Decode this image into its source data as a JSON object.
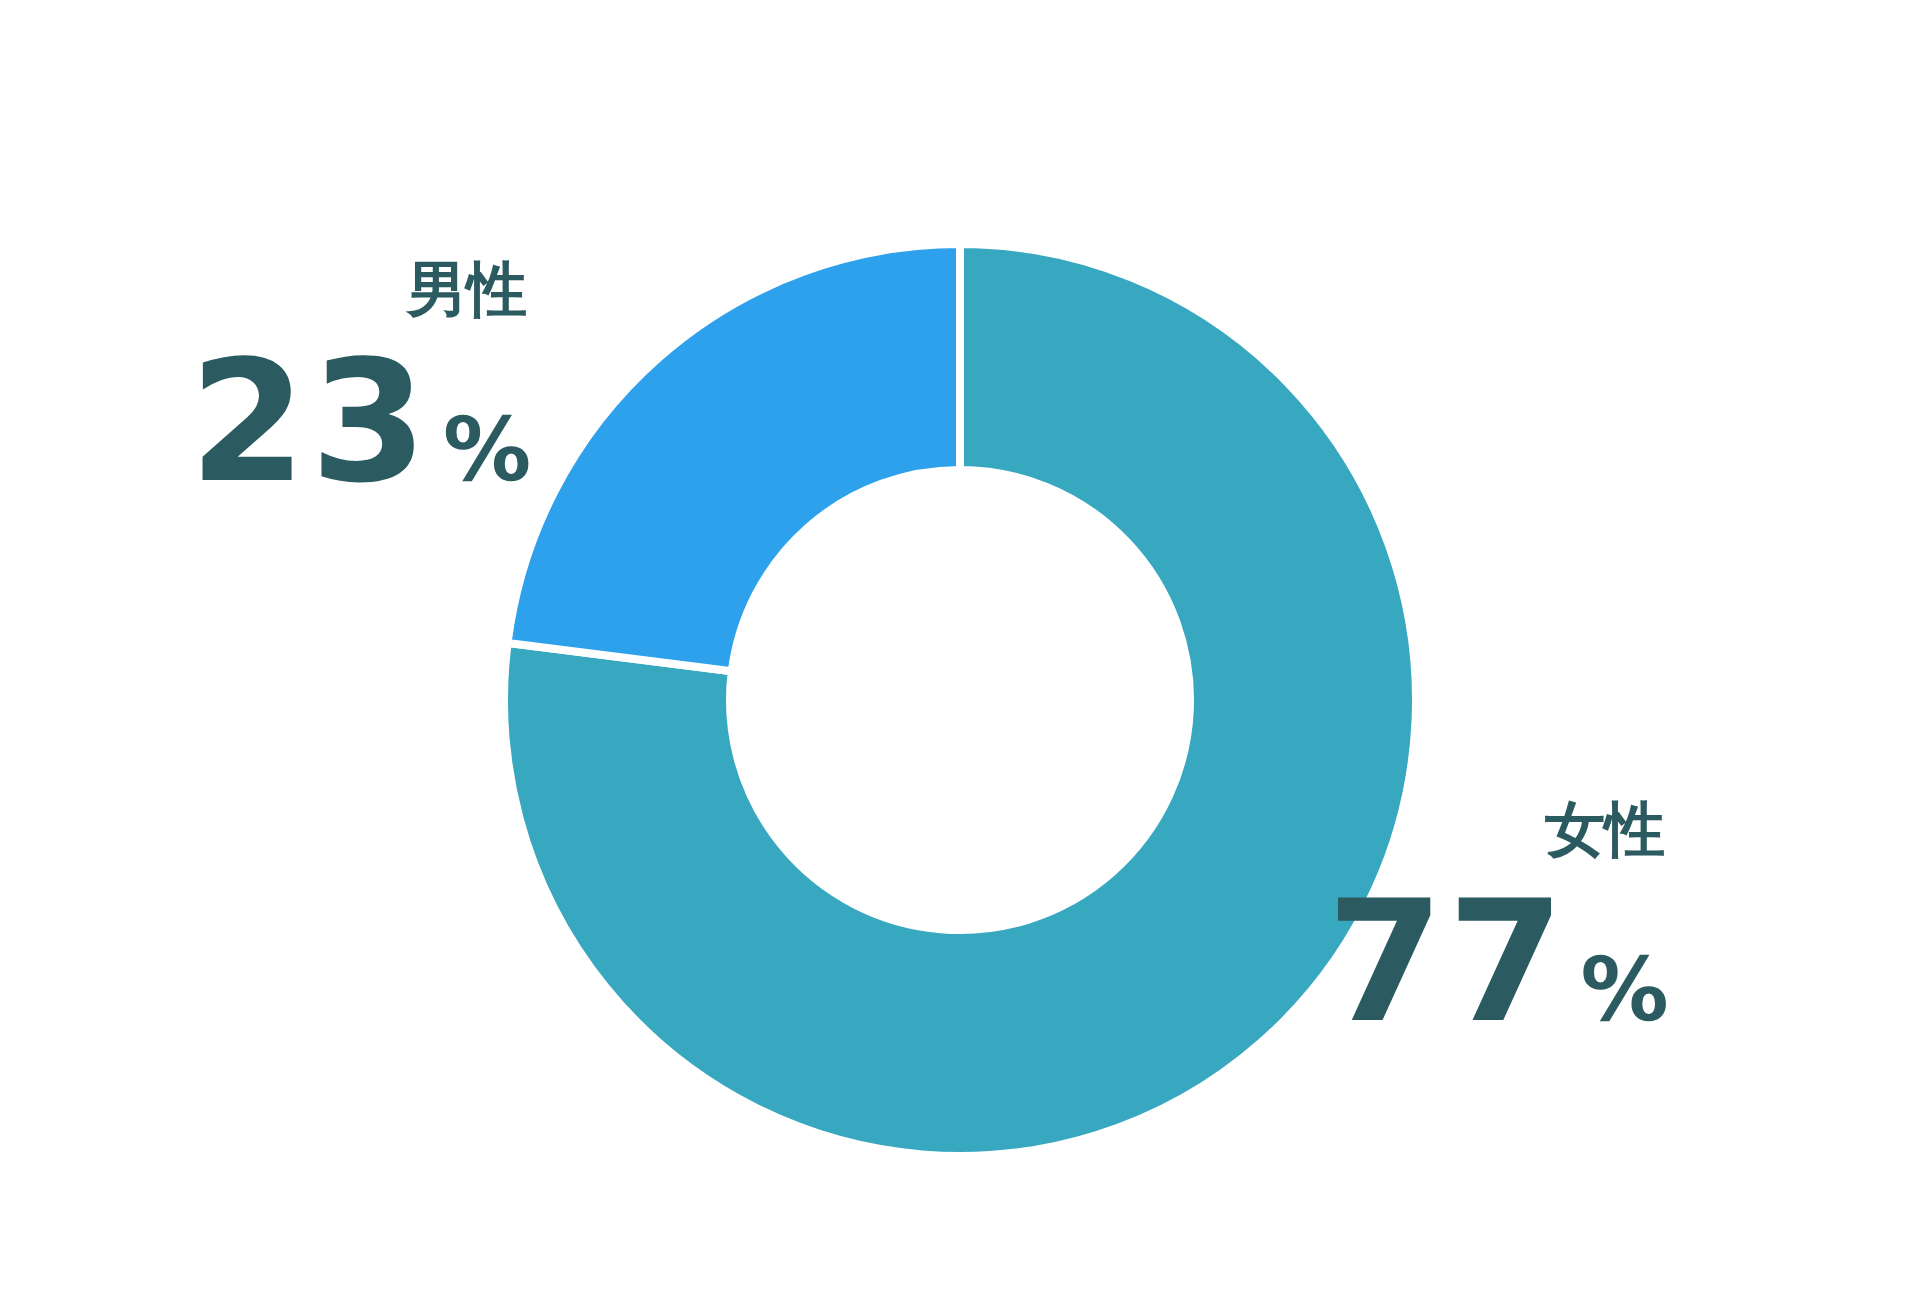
{
  "chart_data": {
    "type": "donut",
    "categories": [
      "女性",
      "男性"
    ],
    "values": [
      77,
      23
    ],
    "colors": [
      "#37a8bf",
      "#2ea1ec"
    ],
    "value_labels": [
      "77%",
      "23%"
    ]
  }
}
